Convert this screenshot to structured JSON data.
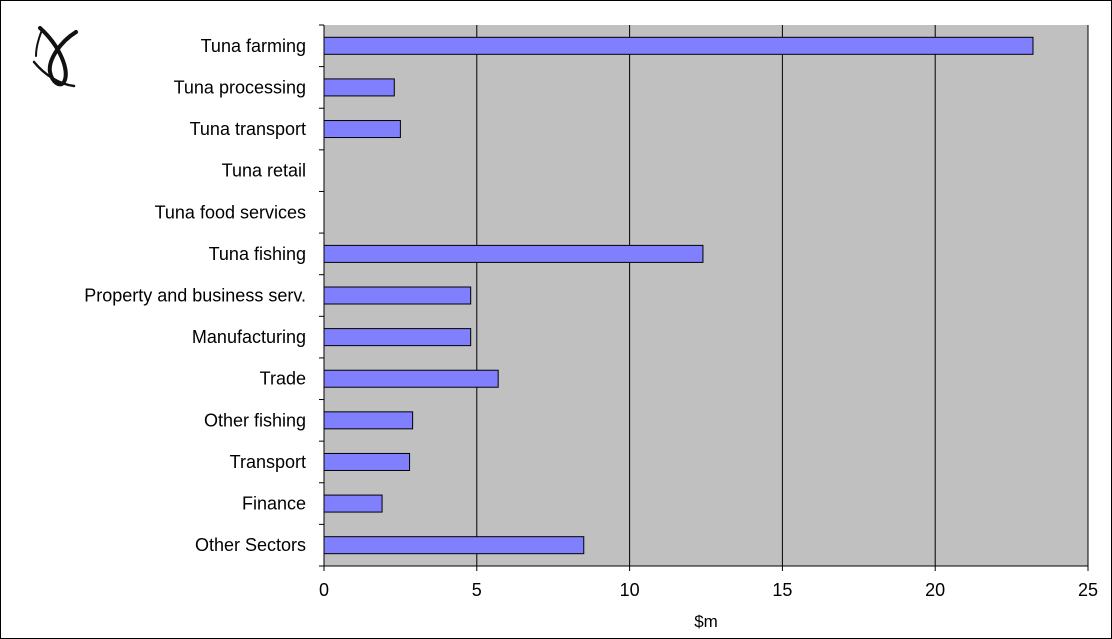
{
  "chart_data": {
    "type": "bar",
    "orientation": "horizontal",
    "categories": [
      "Tuna farming",
      "Tuna processing",
      "Tuna transport",
      "Tuna retail",
      "Tuna food services",
      "Tuna fishing",
      "Property and business serv.",
      "Manufacturing",
      "Trade",
      "Other fishing",
      "Transport",
      "Finance",
      "Other Sectors"
    ],
    "values": [
      23.2,
      2.3,
      2.5,
      0,
      0,
      12.4,
      4.8,
      4.8,
      5.7,
      2.9,
      2.8,
      1.9,
      8.5
    ],
    "title": "",
    "xlabel": "$m",
    "ylabel": "",
    "xlim": [
      0,
      25
    ],
    "xticks": [
      0,
      5,
      10,
      15,
      20,
      25
    ],
    "grid": "vertical",
    "legend": "none",
    "colors": {
      "bar_fill": "#8080ff",
      "bar_stroke": "#000000",
      "plot_background": "#c0c0c0",
      "gridline": "#000000"
    }
  },
  "logo": {
    "icon": "ribbon-logo-icon"
  }
}
